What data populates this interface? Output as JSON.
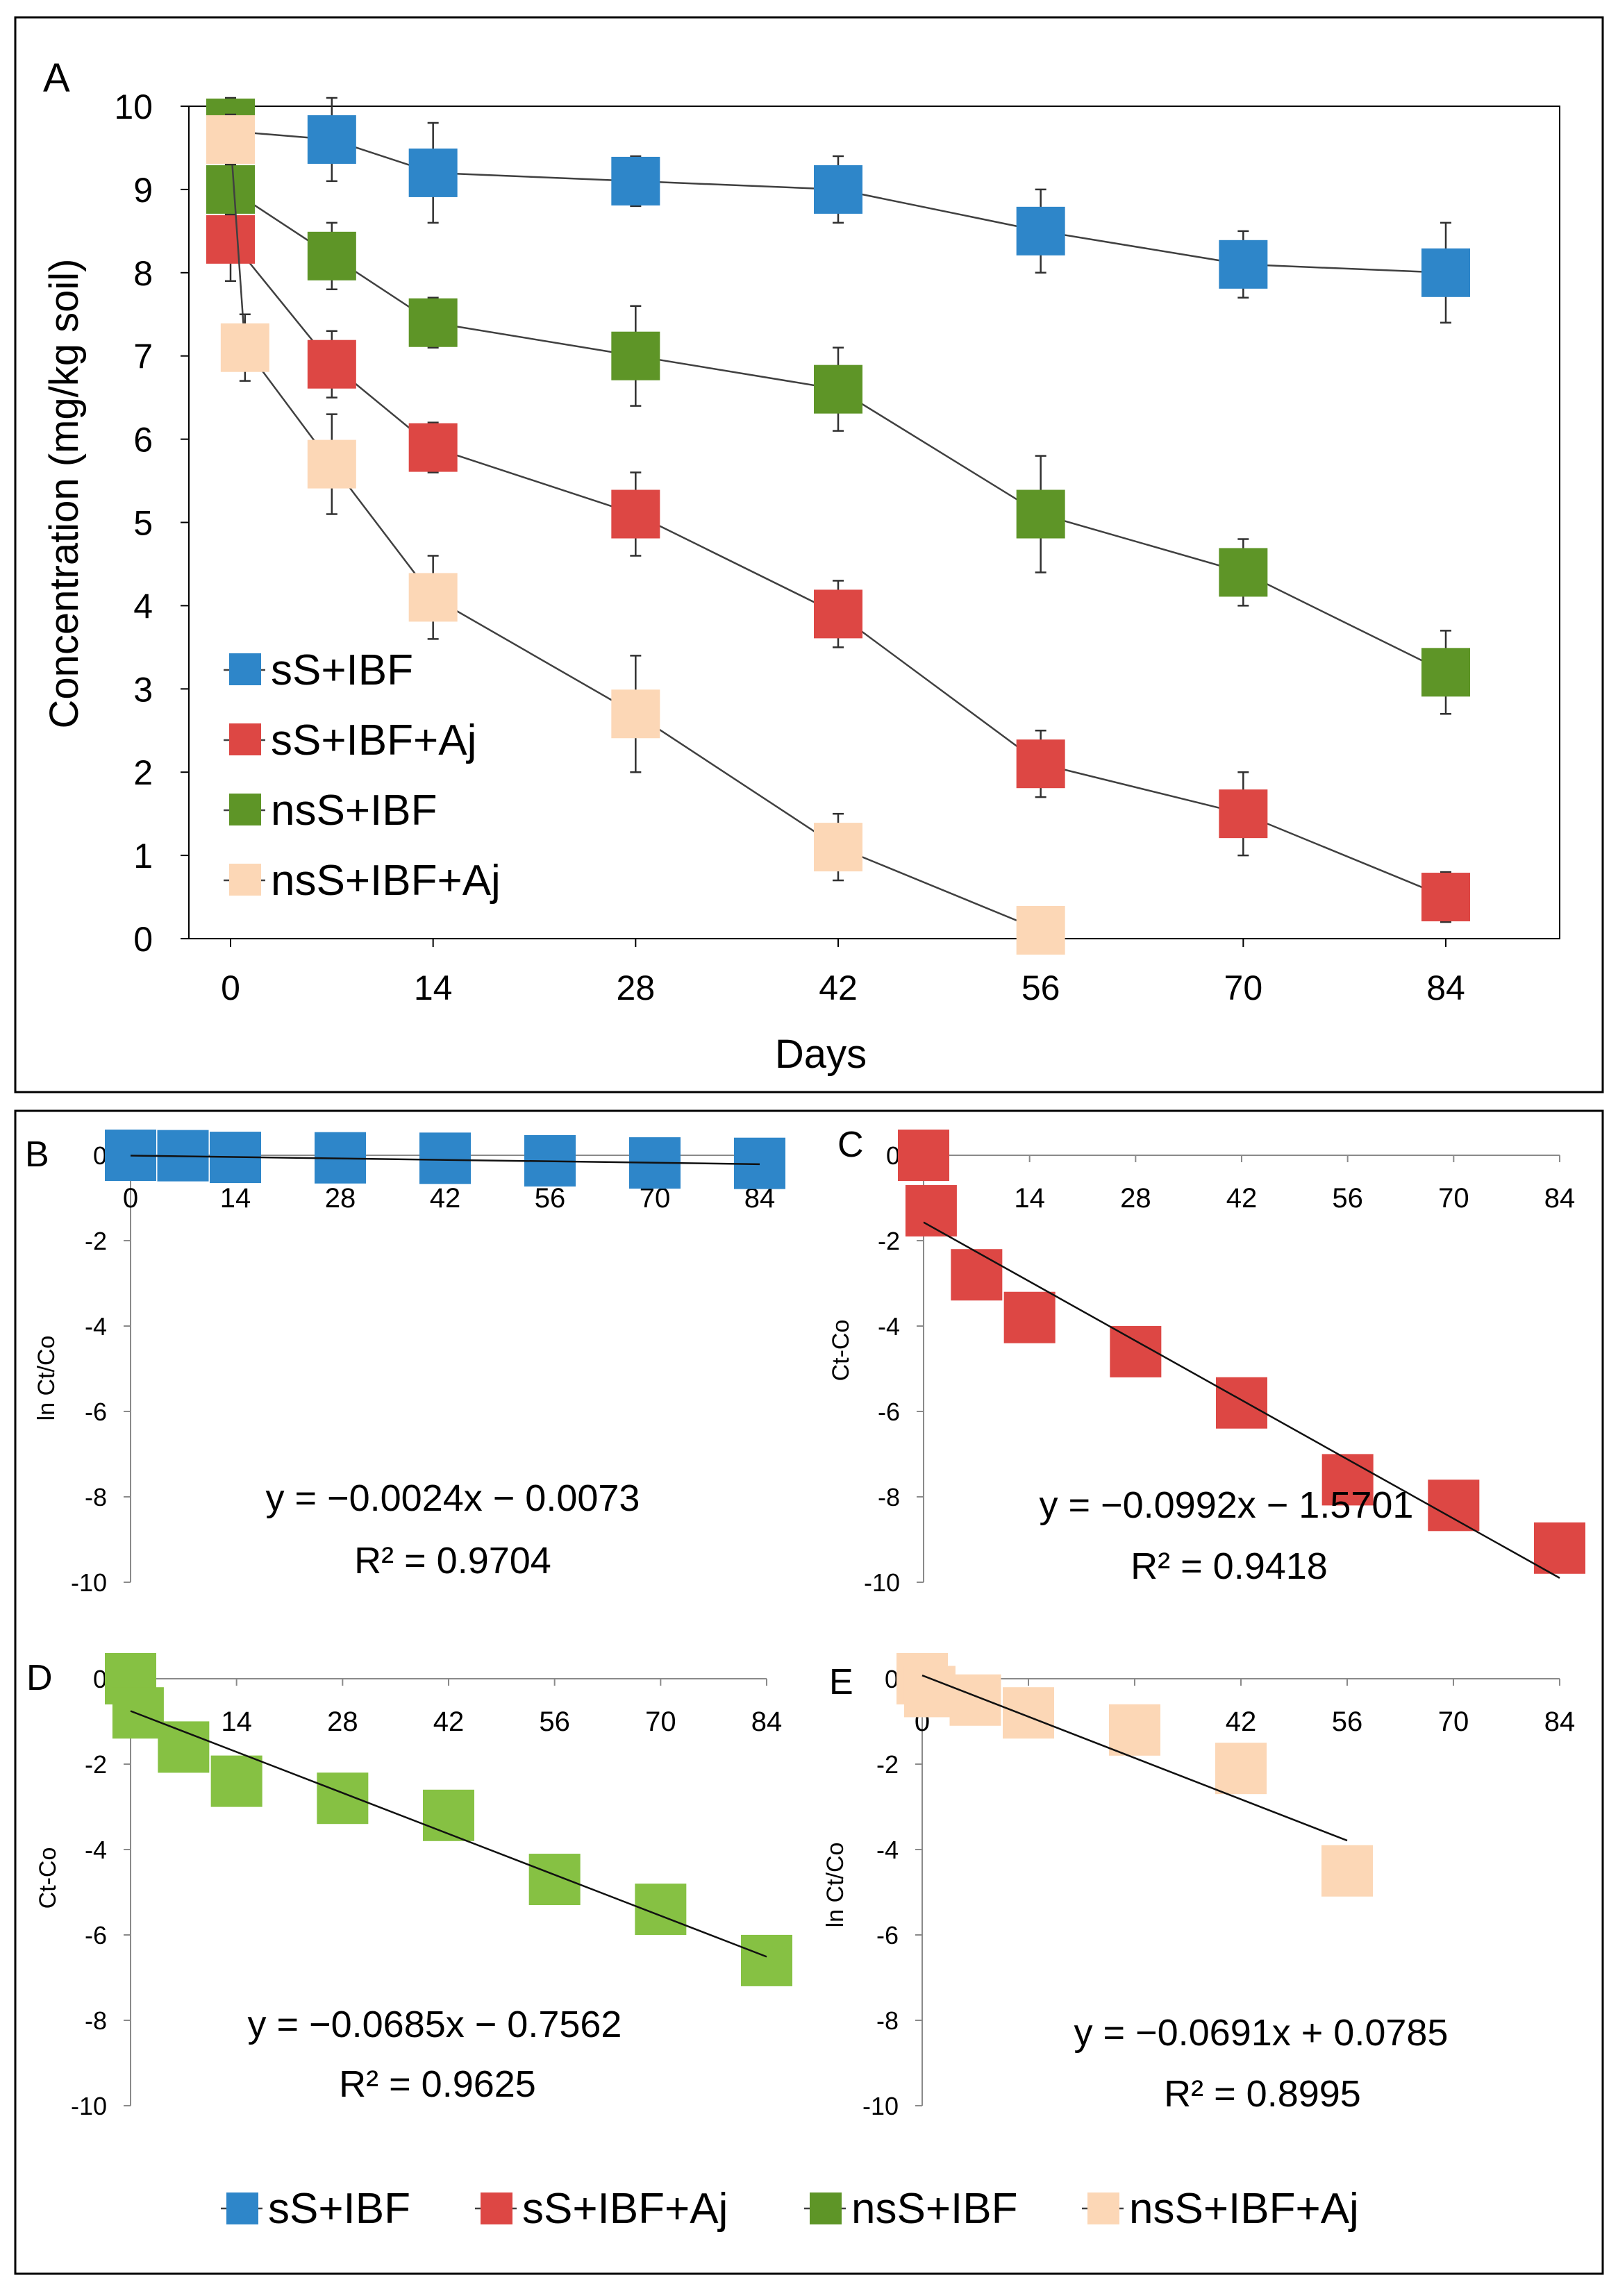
{
  "series": [
    {
      "id": "ss_ibf",
      "name": "sS+IBF",
      "color": "#2e86c9"
    },
    {
      "id": "ss_ibf_aj",
      "name": "sS+IBF+Aj",
      "color": "#dd4744"
    },
    {
      "id": "nss_ibf",
      "name": "nsS+IBF",
      "color": "#5e9527"
    },
    {
      "id": "nss_ibf_aj",
      "name": "nsS+IBF+Aj",
      "color": "#fcd7b6"
    }
  ],
  "chart_data": [
    {
      "panel": "A",
      "type": "line",
      "xlabel": "Days",
      "ylabel": "Concentration (mg/kg soil)",
      "xlim": [
        0,
        84
      ],
      "ylim": [
        0,
        10
      ],
      "xticks": [
        0,
        14,
        28,
        42,
        56,
        70,
        84
      ],
      "yticks": [
        0,
        1,
        2,
        3,
        4,
        5,
        6,
        7,
        8,
        9,
        10
      ],
      "legend": "lower-left",
      "series": [
        {
          "name": "sS+IBF",
          "x": [
            0,
            7,
            14,
            28,
            42,
            56,
            70,
            84
          ],
          "y": [
            9.7,
            9.6,
            9.2,
            9.1,
            9.0,
            8.5,
            8.1,
            8.0
          ],
          "err": [
            0.3,
            0.5,
            0.6,
            0.3,
            0.4,
            0.5,
            0.4,
            0.6
          ]
        },
        {
          "name": "sS+IBF+Aj",
          "x": [
            0,
            7,
            14,
            28,
            42,
            56,
            70,
            84
          ],
          "y": [
            8.4,
            6.9,
            5.9,
            5.1,
            3.9,
            2.1,
            1.5,
            0.5
          ],
          "err": [
            0.5,
            0.4,
            0.3,
            0.5,
            0.4,
            0.4,
            0.5,
            0.3
          ]
        },
        {
          "name": "nsS+IBF",
          "x": [
            0,
            0,
            7,
            14,
            28,
            42,
            56,
            70,
            84
          ],
          "y": [
            9.8,
            9.0,
            8.2,
            7.4,
            7.0,
            6.6,
            5.1,
            4.4,
            3.2
          ],
          "err": [
            0.3,
            0.3,
            0.4,
            0.3,
            0.6,
            0.5,
            0.7,
            0.4,
            0.5
          ]
        },
        {
          "name": "nsS+IBF+Aj",
          "x": [
            0,
            1,
            7,
            14,
            28,
            42,
            56
          ],
          "y": [
            9.6,
            7.1,
            5.7,
            4.1,
            2.7,
            1.1,
            0.1
          ],
          "err": [
            0.3,
            0.4,
            0.6,
            0.5,
            0.7,
            0.4,
            0.1
          ]
        }
      ]
    },
    {
      "panel": "B",
      "type": "scatter",
      "ylabel": "ln Ct/Co",
      "xlim": [
        0,
        84
      ],
      "ylim": [
        -10,
        0
      ],
      "xticks": [
        0,
        14,
        28,
        42,
        56,
        70,
        84
      ],
      "yticks": [
        0,
        -2,
        -4,
        -6,
        -8,
        -10
      ],
      "series_name": "sS+IBF",
      "x": [
        0,
        7,
        14,
        28,
        42,
        56,
        70,
        84
      ],
      "y": [
        0,
        -0.01,
        -0.05,
        -0.06,
        -0.07,
        -0.13,
        -0.18,
        -0.19
      ],
      "fit": {
        "x": [
          0,
          84
        ],
        "y": [
          -0.0073,
          -0.209
        ]
      },
      "equation": "y = −0.0024x − 0.0073",
      "r2": "R² = 0.9704"
    },
    {
      "panel": "C",
      "type": "scatter",
      "ylabel": "Ct-Co",
      "xlim": [
        0,
        84
      ],
      "ylim": [
        -10,
        0
      ],
      "xticks": [
        0,
        14,
        28,
        42,
        56,
        70,
        84
      ],
      "yticks": [
        0,
        -2,
        -4,
        -6,
        -8,
        -10
      ],
      "series_name": "sS+IBF+Aj",
      "x": [
        0,
        1,
        7,
        14,
        28,
        42,
        56,
        70,
        84
      ],
      "y": [
        0,
        -1.3,
        -2.8,
        -3.8,
        -4.6,
        -5.8,
        -7.6,
        -8.2,
        -9.2
      ],
      "fit": {
        "x": [
          0,
          84
        ],
        "y": [
          -1.57,
          -9.9
        ]
      },
      "equation": "y = −0.0992x − 1.5701",
      "r2": "R² = 0.9418"
    },
    {
      "panel": "D",
      "type": "scatter",
      "ylabel": "Ct-Co",
      "xlim": [
        0,
        84
      ],
      "ylim": [
        -10,
        0
      ],
      "xticks": [
        0,
        14,
        28,
        42,
        56,
        70,
        84
      ],
      "yticks": [
        0,
        -2,
        -4,
        -6,
        -8,
        -10
      ],
      "series_name": "nsS+IBF",
      "x": [
        0,
        1,
        7,
        14,
        28,
        42,
        56,
        70,
        84
      ],
      "y": [
        0,
        -0.8,
        -1.6,
        -2.4,
        -2.8,
        -3.2,
        -4.7,
        -5.4,
        -6.6
      ],
      "fit": {
        "x": [
          0,
          84
        ],
        "y": [
          -0.756,
          -6.51
        ]
      },
      "equation": "y = −0.0685x − 0.7562",
      "r2": "R² = 0.9625"
    },
    {
      "panel": "E",
      "type": "scatter",
      "ylabel": "ln Ct/Co",
      "xlim": [
        0,
        84
      ],
      "ylim": [
        -10,
        0
      ],
      "xticks": [
        0,
        14,
        28,
        42,
        56,
        70,
        84
      ],
      "yticks": [
        0,
        -2,
        -4,
        -6,
        -8,
        -10
      ],
      "series_name": "nsS+IBF+Aj",
      "x": [
        0,
        1,
        7,
        14,
        28,
        42,
        56
      ],
      "y": [
        0,
        -0.3,
        -0.5,
        -0.8,
        -1.2,
        -2.1,
        -4.5
      ],
      "fit": {
        "x": [
          0,
          56
        ],
        "y": [
          0.0785,
          -3.79
        ]
      },
      "equation": "y = −0.0691x + 0.0785",
      "r2": "R² = 0.8995"
    }
  ]
}
